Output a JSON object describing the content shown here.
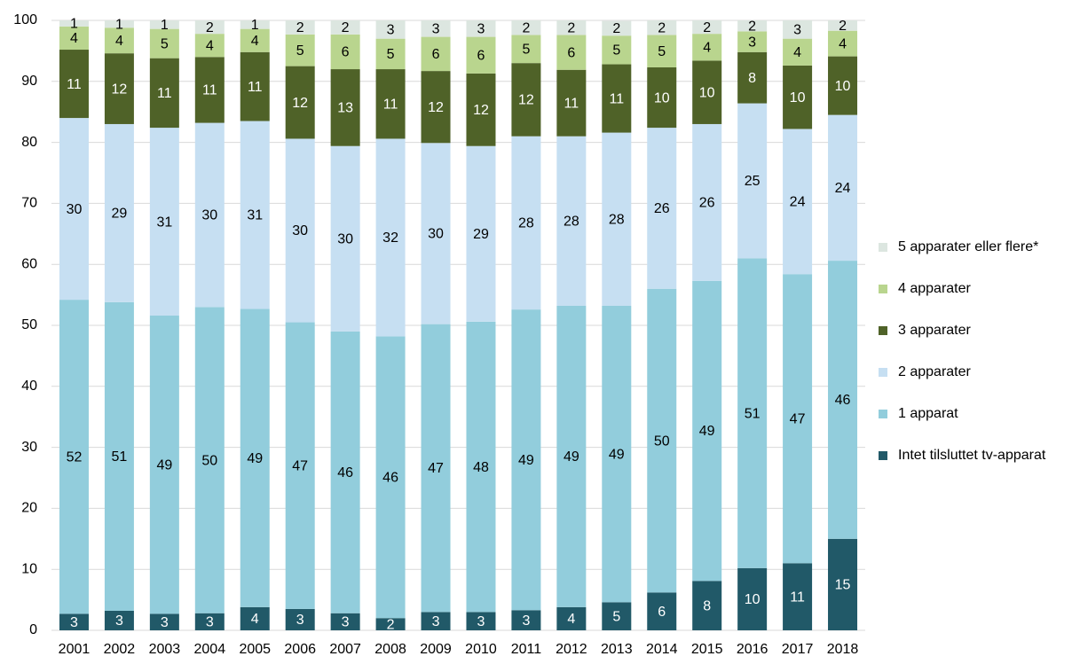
{
  "chart_data": {
    "type": "stacked_bar",
    "categories": [
      "2001",
      "2002",
      "2003",
      "2004",
      "2005",
      "2006",
      "2007",
      "2008",
      "2009",
      "2010",
      "2011",
      "2012",
      "2013",
      "2014",
      "2015",
      "2016",
      "2017",
      "2018"
    ],
    "ylim": [
      0,
      100
    ],
    "yticks": [
      0,
      10,
      20,
      30,
      40,
      50,
      60,
      70,
      80,
      90,
      100
    ],
    "grid": true,
    "legend": "right",
    "series": [
      {
        "name": "Intet tilsluttet tv-apparat",
        "color": "#215968",
        "values": [
          2.7,
          3.2,
          2.7,
          2.8,
          3.8,
          3.5,
          2.8,
          2.0,
          3.0,
          3.0,
          3.3,
          3.8,
          4.6,
          6.2,
          8.1,
          10.2,
          11.0,
          15.0
        ],
        "value_labels": [
          "3",
          "3",
          "3",
          "3",
          "4",
          "3",
          "3",
          "2",
          "3",
          "3",
          "3",
          "4",
          "5",
          "6",
          "8",
          "10",
          "11",
          "15"
        ]
      },
      {
        "name": "1 apparat",
        "color": "#92cddc",
        "values": [
          51.5,
          50.6,
          48.9,
          50.2,
          48.9,
          47.0,
          46.2,
          46.2,
          47.2,
          47.6,
          49.3,
          49.4,
          48.6,
          49.8,
          49.2,
          50.8,
          47.4,
          45.6
        ],
        "value_labels": [
          "52",
          "51",
          "49",
          "50",
          "49",
          "47",
          "46",
          "46",
          "47",
          "48",
          "49",
          "49",
          "49",
          "50",
          "49",
          "51",
          "47",
          "46"
        ]
      },
      {
        "name": "2 apparater",
        "color": "#c6dff2",
        "values": [
          29.8,
          29.2,
          30.8,
          30.2,
          30.8,
          30.1,
          30.4,
          32.4,
          29.7,
          28.8,
          28.4,
          27.8,
          28.4,
          26.4,
          25.7,
          25.4,
          23.8,
          23.9
        ],
        "value_labels": [
          "30",
          "29",
          "31",
          "30",
          "31",
          "30",
          "30",
          "32",
          "30",
          "29",
          "28",
          "28",
          "28",
          "26",
          "26",
          "25",
          "24",
          "24"
        ]
      },
      {
        "name": "3 apparater",
        "color": "#4f6228",
        "values": [
          11.2,
          11.6,
          11.4,
          10.8,
          11.3,
          11.9,
          12.6,
          11.4,
          11.8,
          11.9,
          12.0,
          10.9,
          11.2,
          9.9,
          10.4,
          8.4,
          10.4,
          9.6
        ],
        "value_labels": [
          "11",
          "12",
          "11",
          "11",
          "11",
          "12",
          "13",
          "11",
          "12",
          "12",
          "12",
          "11",
          "11",
          "10",
          "10",
          "8",
          "10",
          "10"
        ]
      },
      {
        "name": "4 apparater",
        "color": "#b9d58e",
        "values": [
          3.8,
          4.2,
          4.8,
          3.8,
          3.8,
          5.2,
          5.7,
          5.0,
          5.6,
          6.0,
          4.6,
          5.7,
          4.7,
          5.3,
          4.4,
          3.4,
          4.4,
          4.2
        ],
        "value_labels": [
          "4",
          "4",
          "5",
          "4",
          "4",
          "5",
          "6",
          "5",
          "6",
          "6",
          "5",
          "6",
          "5",
          "5",
          "4",
          "3",
          "4",
          "4"
        ]
      },
      {
        "name": "5 apparater eller flere*",
        "color": "#dce6e0",
        "values": [
          1.0,
          1.2,
          1.4,
          2.2,
          1.4,
          2.3,
          2.3,
          3.0,
          2.7,
          2.7,
          2.4,
          2.4,
          2.4,
          2.4,
          2.2,
          1.8,
          3.0,
          1.7
        ],
        "value_labels": [
          "1",
          "1",
          "1",
          "2",
          "1",
          "2",
          "2",
          "3",
          "3",
          "3",
          "2",
          "2",
          "2",
          "2",
          "2",
          "2",
          "3",
          "2"
        ]
      }
    ]
  }
}
